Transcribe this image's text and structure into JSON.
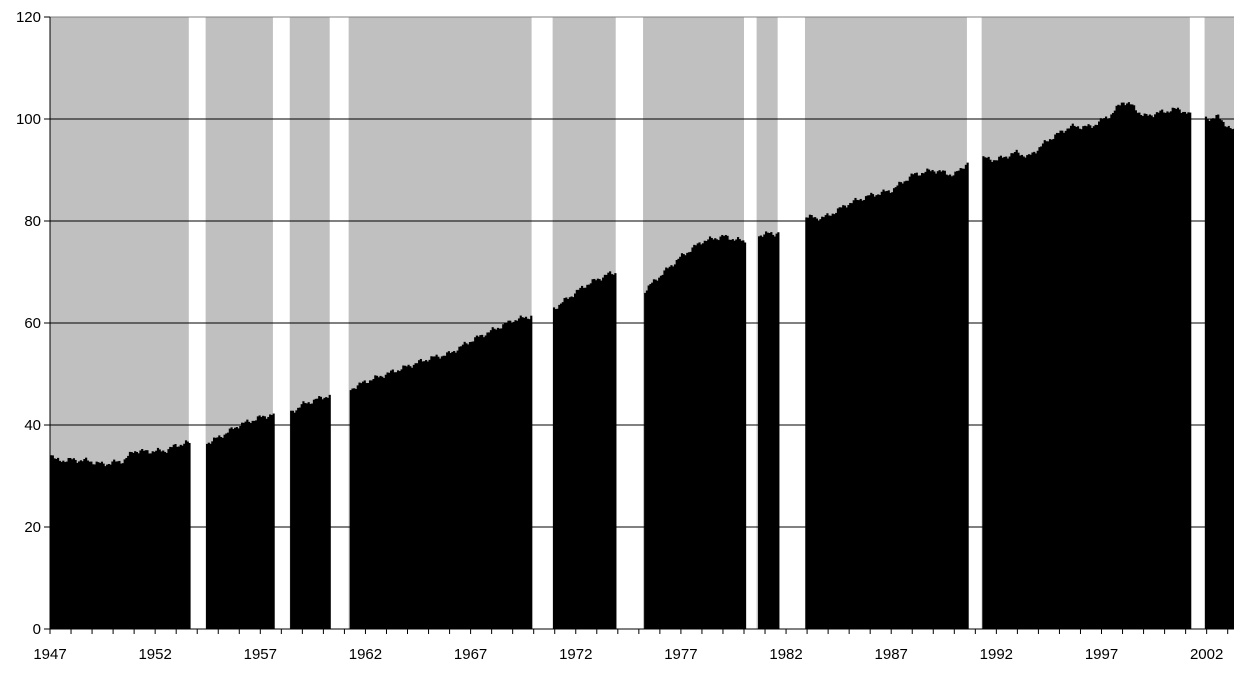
{
  "colors": {
    "background": "#ffffff",
    "plot_area": "#c0c0c0",
    "bars": "#000000",
    "recession_shading": "#ffffff",
    "gridlines": "#000000"
  },
  "chart_data": {
    "type": "bar",
    "title": "",
    "xlabel": "",
    "ylabel": "",
    "xlim": [
      1947.0,
      2003.3
    ],
    "ylim": [
      0,
      120
    ],
    "grid": true,
    "legend": "none",
    "x_ticks": [
      "1947",
      "1952",
      "1957",
      "1962",
      "1967",
      "1972",
      "1977",
      "1982",
      "1987",
      "1992",
      "1997",
      "2002"
    ],
    "y_ticks": [
      "0",
      "20",
      "40",
      "60",
      "80",
      "100",
      "120"
    ],
    "frequency": "monthly",
    "anchors": [
      [
        1947.0,
        34.5
      ],
      [
        1947.3,
        33.0
      ],
      [
        1948.0,
        33.2
      ],
      [
        1948.8,
        33.0
      ],
      [
        1949.5,
        32.3
      ],
      [
        1950.5,
        33.0
      ],
      [
        1951.0,
        35.0
      ],
      [
        1951.5,
        34.8
      ],
      [
        1952.5,
        35.0
      ],
      [
        1953.0,
        36.0
      ],
      [
        1953.5,
        36.5
      ],
      [
        1954.3,
        36.2
      ],
      [
        1955.0,
        37.5
      ],
      [
        1956.0,
        40.0
      ],
      [
        1957.0,
        41.5
      ],
      [
        1957.5,
        42.0
      ],
      [
        1958.3,
        42.0
      ],
      [
        1959.0,
        44.0
      ],
      [
        1960.0,
        45.5
      ],
      [
        1960.5,
        46.0
      ],
      [
        1961.0,
        46.5
      ],
      [
        1962.0,
        48.5
      ],
      [
        1963.0,
        50.0
      ],
      [
        1964.0,
        51.5
      ],
      [
        1965.0,
        53.0
      ],
      [
        1966.0,
        54.0
      ],
      [
        1967.0,
        56.5
      ],
      [
        1968.0,
        58.5
      ],
      [
        1969.0,
        60.5
      ],
      [
        1970.0,
        61.5
      ],
      [
        1970.7,
        62.0
      ],
      [
        1971.5,
        64.5
      ],
      [
        1972.5,
        67.5
      ],
      [
        1973.5,
        69.5
      ],
      [
        1974.0,
        70.0
      ],
      [
        1974.6,
        69.5
      ],
      [
        1975.2,
        66.0
      ],
      [
        1975.8,
        68.5
      ],
      [
        1977.0,
        73.0
      ],
      [
        1978.0,
        76.0
      ],
      [
        1979.0,
        77.0
      ],
      [
        1980.0,
        76.0
      ],
      [
        1980.5,
        77.0
      ],
      [
        1981.0,
        77.5
      ],
      [
        1981.5,
        77.5
      ],
      [
        1982.0,
        79.0
      ],
      [
        1982.5,
        80.0
      ],
      [
        1982.9,
        81.0
      ],
      [
        1983.5,
        80.5
      ],
      [
        1984.0,
        81.0
      ],
      [
        1985.0,
        83.5
      ],
      [
        1986.0,
        85.0
      ],
      [
        1987.0,
        86.0
      ],
      [
        1988.0,
        89.0
      ],
      [
        1989.0,
        90.0
      ],
      [
        1990.0,
        89.0
      ],
      [
        1990.5,
        91.0
      ],
      [
        1991.0,
        92.5
      ],
      [
        1992.0,
        92.0
      ],
      [
        1993.0,
        93.5
      ],
      [
        1993.5,
        92.5
      ],
      [
        1994.5,
        96.0
      ],
      [
        1995.5,
        98.5
      ],
      [
        1996.5,
        98.5
      ],
      [
        1997.5,
        101.0
      ],
      [
        1998.0,
        103.5
      ],
      [
        1998.5,
        102.5
      ],
      [
        1999.0,
        100.5
      ],
      [
        2000.0,
        101.5
      ],
      [
        2000.7,
        102.0
      ],
      [
        2001.3,
        100.5
      ],
      [
        2002.0,
        100.0
      ],
      [
        2002.5,
        100.5
      ],
      [
        2003.3,
        97.5
      ]
    ],
    "shaded_periods": [
      [
        1953.6,
        1954.4
      ],
      [
        1957.6,
        1958.4
      ],
      [
        1960.3,
        1961.2
      ],
      [
        1969.9,
        1970.9
      ],
      [
        1973.9,
        1975.2
      ],
      [
        1980.0,
        1980.6
      ],
      [
        1981.6,
        1982.9
      ],
      [
        1990.6,
        1991.3
      ],
      [
        2001.2,
        2001.9
      ]
    ]
  }
}
